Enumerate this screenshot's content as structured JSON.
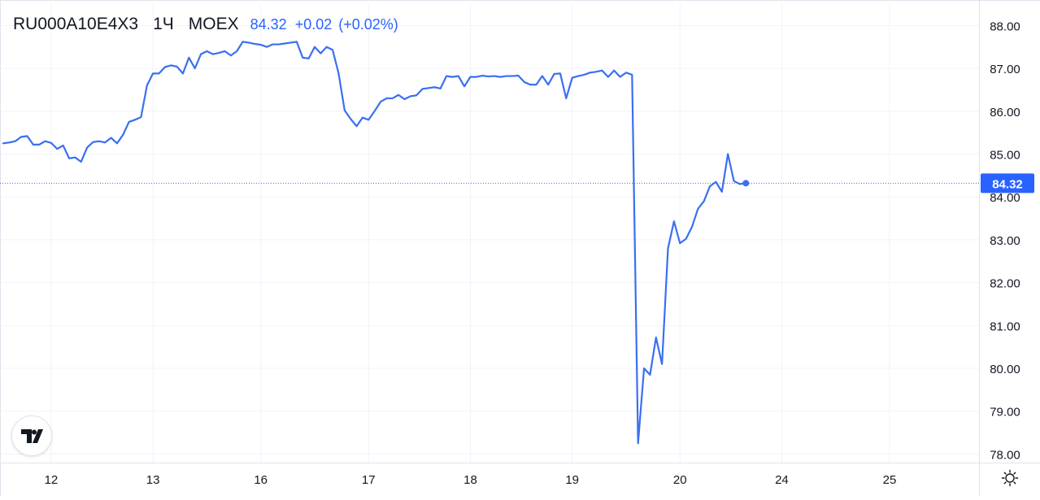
{
  "header": {
    "symbol": "RU000A10E4X3",
    "interval": "1Ч",
    "exchange": "MOEX",
    "last_price": "84.32",
    "change": "+0.02",
    "change_percent": "(+0.02%)"
  },
  "colors": {
    "line": "#3a6ff0",
    "accent": "#2962ff",
    "text": "#131722",
    "grid": "#f0f3fa",
    "axis_border": "#e0e3eb"
  },
  "icons": {
    "logo": "tradingview-logo-icon",
    "settings": "sun-gear-icon"
  },
  "chart_data": {
    "type": "line",
    "y_axis_side": "right",
    "ylim": [
      77.8,
      88.5
    ],
    "y_ticks": [
      "78.00",
      "79.00",
      "80.00",
      "81.00",
      "82.00",
      "83.00",
      "84.00",
      "85.00",
      "86.00",
      "87.00",
      "88.00"
    ],
    "x_ticks": [
      {
        "label": "12",
        "i": 8
      },
      {
        "label": "13",
        "i": 25
      },
      {
        "label": "16",
        "i": 43
      },
      {
        "label": "17",
        "i": 61
      },
      {
        "label": "18",
        "i": 78
      },
      {
        "label": "19",
        "i": 95
      },
      {
        "label": "20",
        "i": 113
      },
      {
        "label": "24",
        "i": 130
      },
      {
        "label": "25",
        "i": 148
      }
    ],
    "n_slots": 169,
    "last_value_label": "84.32",
    "last_value": 84.32,
    "series": [
      {
        "values": [
          85.25,
          85.27,
          85.3,
          85.4,
          85.42,
          85.22,
          85.22,
          85.3,
          85.26,
          85.12,
          85.2,
          84.9,
          84.92,
          84.82,
          85.15,
          85.28,
          85.3,
          85.27,
          85.38,
          85.25,
          85.45,
          85.75,
          85.8,
          85.86,
          86.6,
          86.88,
          86.88,
          87.03,
          87.07,
          87.04,
          86.88,
          87.25,
          87.0,
          87.33,
          87.4,
          87.33,
          87.36,
          87.4,
          87.3,
          87.4,
          87.62,
          87.6,
          87.57,
          87.55,
          87.5,
          87.56,
          87.56,
          87.58,
          87.6,
          87.62,
          87.25,
          87.23,
          87.5,
          87.35,
          87.5,
          87.43,
          86.88,
          86.02,
          85.82,
          85.65,
          85.85,
          85.8,
          86.0,
          86.22,
          86.3,
          86.3,
          86.38,
          86.28,
          86.35,
          86.37,
          86.52,
          86.54,
          86.56,
          86.53,
          86.82,
          86.8,
          86.82,
          86.58,
          86.8,
          86.8,
          86.83,
          86.81,
          86.82,
          86.8,
          86.82,
          86.82,
          86.83,
          86.68,
          86.62,
          86.62,
          86.82,
          86.62,
          86.87,
          86.88,
          86.3,
          86.78,
          86.82,
          86.85,
          86.9,
          86.92,
          86.95,
          86.8,
          86.95,
          86.8,
          86.9,
          86.85,
          78.25,
          80.0,
          79.85,
          80.72,
          80.1,
          82.8,
          83.43,
          82.92,
          83.02,
          83.3,
          83.72,
          83.9,
          84.25,
          84.35,
          84.12,
          85.0,
          84.37,
          84.3,
          84.32
        ]
      }
    ]
  }
}
